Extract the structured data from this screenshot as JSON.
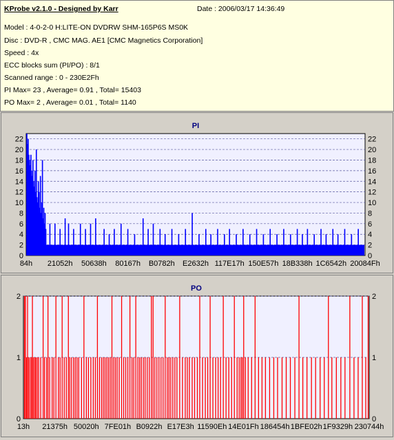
{
  "info": {
    "app_title": "KProbe v2.1.0 - Designed by Karr",
    "date": "Date : 2006/03/17 14:36:49",
    "lines": [
      "Model : 4-0-2-0 H:LITE-ON DVDRW SHM-165P6S MS0K",
      "Disc : DVD-R , CMC MAG. AE1 [CMC Magnetics Corporation]",
      "Speed : 4x",
      "ECC blocks sum (PI/PO) : 8/1",
      "Scanned range : 0 - 230E2Fh",
      "PI Max= 23 , Average= 0.91 , Total= 15403",
      "PO Max= 2 , Average= 0.01 , Total= 1140"
    ]
  },
  "colors": {
    "pi": "#0000ff",
    "po": "#ff0000",
    "plot_bg": "#f0f0ff",
    "grid": "#5a5aa0",
    "title": "#000080"
  },
  "chart_data": [
    {
      "type": "bar",
      "title": "PI",
      "xlabel": "",
      "ylabel": "",
      "ylim": [
        0,
        23
      ],
      "yticks": [
        0,
        2,
        4,
        6,
        8,
        10,
        12,
        14,
        16,
        18,
        20,
        22
      ],
      "grid": true,
      "xtick_labels": [
        "84h",
        "21052h",
        "50638h",
        "80167h",
        "B0782h",
        "E2632h",
        "117E17h",
        "150E57h",
        "18B338h",
        "1C6542h",
        "20084Fh"
      ],
      "x_range": [
        "0h",
        "230E2Fh"
      ],
      "baseline_level": 2,
      "max": 23,
      "spikes": [
        {
          "pos": 0.002,
          "v": 23
        },
        {
          "pos": 0.004,
          "v": 21
        },
        {
          "pos": 0.006,
          "v": 22
        },
        {
          "pos": 0.008,
          "v": 19
        },
        {
          "pos": 0.01,
          "v": 18
        },
        {
          "pos": 0.012,
          "v": 17
        },
        {
          "pos": 0.014,
          "v": 19
        },
        {
          "pos": 0.016,
          "v": 16
        },
        {
          "pos": 0.018,
          "v": 15
        },
        {
          "pos": 0.02,
          "v": 18
        },
        {
          "pos": 0.022,
          "v": 14
        },
        {
          "pos": 0.024,
          "v": 13
        },
        {
          "pos": 0.026,
          "v": 16
        },
        {
          "pos": 0.028,
          "v": 12
        },
        {
          "pos": 0.03,
          "v": 20
        },
        {
          "pos": 0.032,
          "v": 11
        },
        {
          "pos": 0.034,
          "v": 10
        },
        {
          "pos": 0.036,
          "v": 14
        },
        {
          "pos": 0.038,
          "v": 12
        },
        {
          "pos": 0.04,
          "v": 9
        },
        {
          "pos": 0.042,
          "v": 15
        },
        {
          "pos": 0.044,
          "v": 8
        },
        {
          "pos": 0.046,
          "v": 10
        },
        {
          "pos": 0.048,
          "v": 18
        },
        {
          "pos": 0.05,
          "v": 7
        },
        {
          "pos": 0.052,
          "v": 9
        },
        {
          "pos": 0.054,
          "v": 6
        },
        {
          "pos": 0.056,
          "v": 8
        },
        {
          "pos": 0.058,
          "v": 5
        },
        {
          "pos": 0.07,
          "v": 6
        },
        {
          "pos": 0.085,
          "v": 6
        },
        {
          "pos": 0.1,
          "v": 5
        },
        {
          "pos": 0.115,
          "v": 7
        },
        {
          "pos": 0.125,
          "v": 6
        },
        {
          "pos": 0.14,
          "v": 5
        },
        {
          "pos": 0.16,
          "v": 6
        },
        {
          "pos": 0.175,
          "v": 5
        },
        {
          "pos": 0.19,
          "v": 6
        },
        {
          "pos": 0.205,
          "v": 7
        },
        {
          "pos": 0.23,
          "v": 5
        },
        {
          "pos": 0.245,
          "v": 4
        },
        {
          "pos": 0.26,
          "v": 5
        },
        {
          "pos": 0.28,
          "v": 6
        },
        {
          "pos": 0.3,
          "v": 5
        },
        {
          "pos": 0.32,
          "v": 4
        },
        {
          "pos": 0.345,
          "v": 7
        },
        {
          "pos": 0.36,
          "v": 5
        },
        {
          "pos": 0.375,
          "v": 6
        },
        {
          "pos": 0.395,
          "v": 5
        },
        {
          "pos": 0.41,
          "v": 4
        },
        {
          "pos": 0.43,
          "v": 5
        },
        {
          "pos": 0.45,
          "v": 4
        },
        {
          "pos": 0.47,
          "v": 5
        },
        {
          "pos": 0.49,
          "v": 8
        },
        {
          "pos": 0.51,
          "v": 4
        },
        {
          "pos": 0.53,
          "v": 5
        },
        {
          "pos": 0.545,
          "v": 4
        },
        {
          "pos": 0.565,
          "v": 5
        },
        {
          "pos": 0.585,
          "v": 4
        },
        {
          "pos": 0.6,
          "v": 5
        },
        {
          "pos": 0.62,
          "v": 4
        },
        {
          "pos": 0.64,
          "v": 5
        },
        {
          "pos": 0.66,
          "v": 4
        },
        {
          "pos": 0.68,
          "v": 5
        },
        {
          "pos": 0.7,
          "v": 4
        },
        {
          "pos": 0.72,
          "v": 5
        },
        {
          "pos": 0.74,
          "v": 4
        },
        {
          "pos": 0.76,
          "v": 5
        },
        {
          "pos": 0.78,
          "v": 4
        },
        {
          "pos": 0.8,
          "v": 5
        },
        {
          "pos": 0.815,
          "v": 4
        },
        {
          "pos": 0.83,
          "v": 5
        },
        {
          "pos": 0.85,
          "v": 4
        },
        {
          "pos": 0.87,
          "v": 5
        },
        {
          "pos": 0.885,
          "v": 4
        },
        {
          "pos": 0.905,
          "v": 5
        },
        {
          "pos": 0.92,
          "v": 4
        },
        {
          "pos": 0.94,
          "v": 5
        },
        {
          "pos": 0.96,
          "v": 4
        },
        {
          "pos": 0.98,
          "v": 5
        }
      ]
    },
    {
      "type": "bar",
      "title": "PO",
      "xlabel": "",
      "ylabel": "",
      "ylim": [
        0,
        2
      ],
      "yticks": [
        0,
        1,
        2
      ],
      "grid": true,
      "xtick_labels": [
        "13h",
        "21375h",
        "50020h",
        "7FE01h",
        "B0922h",
        "E17E3h",
        "11590Eh",
        "14E01Fh",
        "186454h",
        "1BFE02h",
        "1F9329h",
        "230744h"
      ],
      "x_range": [
        "0h",
        "230E2Fh"
      ],
      "max": 2,
      "events": [
        {
          "pos": 0.003,
          "v": 2
        },
        {
          "pos": 0.006,
          "v": 2
        },
        {
          "pos": 0.009,
          "v": 1
        },
        {
          "pos": 0.012,
          "v": 2
        },
        {
          "pos": 0.015,
          "v": 1
        },
        {
          "pos": 0.019,
          "v": 1
        },
        {
          "pos": 0.023,
          "v": 1
        },
        {
          "pos": 0.026,
          "v": 2
        },
        {
          "pos": 0.029,
          "v": 1
        },
        {
          "pos": 0.033,
          "v": 1
        },
        {
          "pos": 0.036,
          "v": 1
        },
        {
          "pos": 0.04,
          "v": 1
        },
        {
          "pos": 0.044,
          "v": 1
        },
        {
          "pos": 0.05,
          "v": 1
        },
        {
          "pos": 0.057,
          "v": 2
        },
        {
          "pos": 0.061,
          "v": 1
        },
        {
          "pos": 0.067,
          "v": 1
        },
        {
          "pos": 0.071,
          "v": 2
        },
        {
          "pos": 0.076,
          "v": 1
        },
        {
          "pos": 0.083,
          "v": 1
        },
        {
          "pos": 0.088,
          "v": 1
        },
        {
          "pos": 0.094,
          "v": 2
        },
        {
          "pos": 0.101,
          "v": 1
        },
        {
          "pos": 0.106,
          "v": 1
        },
        {
          "pos": 0.112,
          "v": 2
        },
        {
          "pos": 0.118,
          "v": 1
        },
        {
          "pos": 0.124,
          "v": 1
        },
        {
          "pos": 0.13,
          "v": 2
        },
        {
          "pos": 0.134,
          "v": 1
        },
        {
          "pos": 0.139,
          "v": 1
        },
        {
          "pos": 0.145,
          "v": 1
        },
        {
          "pos": 0.15,
          "v": 1
        },
        {
          "pos": 0.155,
          "v": 1
        },
        {
          "pos": 0.16,
          "v": 1
        },
        {
          "pos": 0.168,
          "v": 1
        },
        {
          "pos": 0.175,
          "v": 2
        },
        {
          "pos": 0.182,
          "v": 1
        },
        {
          "pos": 0.188,
          "v": 1
        },
        {
          "pos": 0.195,
          "v": 1
        },
        {
          "pos": 0.202,
          "v": 1
        },
        {
          "pos": 0.208,
          "v": 1
        },
        {
          "pos": 0.214,
          "v": 2
        },
        {
          "pos": 0.22,
          "v": 1
        },
        {
          "pos": 0.226,
          "v": 1
        },
        {
          "pos": 0.231,
          "v": 1
        },
        {
          "pos": 0.236,
          "v": 1
        },
        {
          "pos": 0.241,
          "v": 1
        },
        {
          "pos": 0.246,
          "v": 1
        },
        {
          "pos": 0.251,
          "v": 1
        },
        {
          "pos": 0.256,
          "v": 2
        },
        {
          "pos": 0.261,
          "v": 1
        },
        {
          "pos": 0.266,
          "v": 1
        },
        {
          "pos": 0.271,
          "v": 1
        },
        {
          "pos": 0.277,
          "v": 1
        },
        {
          "pos": 0.284,
          "v": 2
        },
        {
          "pos": 0.29,
          "v": 1
        },
        {
          "pos": 0.296,
          "v": 1
        },
        {
          "pos": 0.302,
          "v": 1
        },
        {
          "pos": 0.308,
          "v": 2
        },
        {
          "pos": 0.314,
          "v": 1
        },
        {
          "pos": 0.319,
          "v": 1
        },
        {
          "pos": 0.325,
          "v": 2
        },
        {
          "pos": 0.331,
          "v": 1
        },
        {
          "pos": 0.336,
          "v": 1
        },
        {
          "pos": 0.341,
          "v": 1
        },
        {
          "pos": 0.347,
          "v": 1
        },
        {
          "pos": 0.352,
          "v": 1
        },
        {
          "pos": 0.358,
          "v": 1
        },
        {
          "pos": 0.364,
          "v": 1
        },
        {
          "pos": 0.37,
          "v": 2
        },
        {
          "pos": 0.375,
          "v": 2
        },
        {
          "pos": 0.38,
          "v": 1
        },
        {
          "pos": 0.386,
          "v": 1
        },
        {
          "pos": 0.392,
          "v": 1
        },
        {
          "pos": 0.398,
          "v": 1
        },
        {
          "pos": 0.404,
          "v": 1
        },
        {
          "pos": 0.41,
          "v": 2
        },
        {
          "pos": 0.416,
          "v": 1
        },
        {
          "pos": 0.421,
          "v": 1
        },
        {
          "pos": 0.426,
          "v": 1
        },
        {
          "pos": 0.432,
          "v": 1
        },
        {
          "pos": 0.438,
          "v": 1
        },
        {
          "pos": 0.444,
          "v": 1
        },
        {
          "pos": 0.452,
          "v": 2
        },
        {
          "pos": 0.46,
          "v": 1
        },
        {
          "pos": 0.468,
          "v": 1
        },
        {
          "pos": 0.474,
          "v": 1
        },
        {
          "pos": 0.48,
          "v": 1
        },
        {
          "pos": 0.488,
          "v": 1
        },
        {
          "pos": 0.495,
          "v": 1
        },
        {
          "pos": 0.503,
          "v": 1
        },
        {
          "pos": 0.51,
          "v": 2
        },
        {
          "pos": 0.518,
          "v": 1
        },
        {
          "pos": 0.526,
          "v": 1
        },
        {
          "pos": 0.533,
          "v": 1
        },
        {
          "pos": 0.54,
          "v": 2
        },
        {
          "pos": 0.548,
          "v": 1
        },
        {
          "pos": 0.556,
          "v": 1
        },
        {
          "pos": 0.563,
          "v": 1
        },
        {
          "pos": 0.57,
          "v": 1
        },
        {
          "pos": 0.578,
          "v": 2
        },
        {
          "pos": 0.586,
          "v": 1
        },
        {
          "pos": 0.594,
          "v": 1
        },
        {
          "pos": 0.602,
          "v": 1
        },
        {
          "pos": 0.61,
          "v": 2
        },
        {
          "pos": 0.618,
          "v": 1
        },
        {
          "pos": 0.624,
          "v": 1
        },
        {
          "pos": 0.629,
          "v": 1
        },
        {
          "pos": 0.633,
          "v": 1
        },
        {
          "pos": 0.637,
          "v": 2
        },
        {
          "pos": 0.642,
          "v": 1
        },
        {
          "pos": 0.65,
          "v": 1
        },
        {
          "pos": 0.66,
          "v": 1
        },
        {
          "pos": 0.67,
          "v": 2
        },
        {
          "pos": 0.68,
          "v": 1
        },
        {
          "pos": 0.69,
          "v": 1
        },
        {
          "pos": 0.7,
          "v": 1
        },
        {
          "pos": 0.712,
          "v": 1
        },
        {
          "pos": 0.724,
          "v": 1
        },
        {
          "pos": 0.735,
          "v": 1
        },
        {
          "pos": 0.748,
          "v": 1
        },
        {
          "pos": 0.76,
          "v": 1
        },
        {
          "pos": 0.772,
          "v": 1
        },
        {
          "pos": 0.785,
          "v": 1
        },
        {
          "pos": 0.797,
          "v": 2
        },
        {
          "pos": 0.808,
          "v": 1
        },
        {
          "pos": 0.82,
          "v": 1
        },
        {
          "pos": 0.833,
          "v": 1
        },
        {
          "pos": 0.845,
          "v": 1
        },
        {
          "pos": 0.858,
          "v": 1
        },
        {
          "pos": 0.87,
          "v": 1
        },
        {
          "pos": 0.882,
          "v": 2
        },
        {
          "pos": 0.892,
          "v": 1
        },
        {
          "pos": 0.905,
          "v": 1
        },
        {
          "pos": 0.918,
          "v": 1
        },
        {
          "pos": 0.93,
          "v": 1
        },
        {
          "pos": 0.944,
          "v": 2
        },
        {
          "pos": 0.956,
          "v": 1
        },
        {
          "pos": 0.968,
          "v": 1
        },
        {
          "pos": 0.98,
          "v": 2
        },
        {
          "pos": 0.99,
          "v": 1
        },
        {
          "pos": 0.997,
          "v": 2
        }
      ]
    }
  ]
}
